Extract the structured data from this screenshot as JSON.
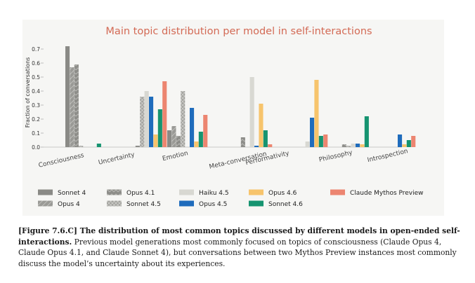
{
  "chart_data": {
    "type": "bar",
    "title": "Main topic distribution per model in self-interactions",
    "ylabel": "Fraction of conversations",
    "xlabel": "",
    "ylim": [
      0,
      0.75
    ],
    "yticks": [
      "0.0",
      "0.1",
      "0.2",
      "0.3",
      "0.4",
      "0.5",
      "0.6",
      "0.7"
    ],
    "grid": false,
    "legend_position": "bottom",
    "categories": [
      "Consciousness",
      "Uncertainty",
      "Emotion",
      "Meta-conversation",
      "Performativity",
      "Philosophy",
      "Introspection"
    ],
    "series": [
      {
        "name": "Sonnet 4",
        "color": "#8a8a86",
        "pattern": "solid",
        "values": [
          0.72,
          0.0,
          0.12,
          0.0,
          0.0,
          0.0,
          0.0
        ]
      },
      {
        "name": "Opus 4",
        "color": "#9a9a96",
        "pattern": "hatch",
        "values": [
          0.57,
          0.0,
          0.15,
          0.0,
          0.0,
          0.0,
          0.0
        ]
      },
      {
        "name": "Opus 4.1",
        "color": "#8d8d89",
        "pattern": "zigzag",
        "values": [
          0.59,
          0.01,
          0.08,
          0.07,
          0.0,
          0.02,
          0.0
        ]
      },
      {
        "name": "Sonnet 4.5",
        "color": "#a1a19d",
        "pattern": "xhatch",
        "values": [
          0.01,
          0.36,
          0.4,
          0.0,
          0.0,
          0.01,
          0.0
        ]
      },
      {
        "name": "Haiku 4.5",
        "color": "#d8d8d2",
        "pattern": "solid",
        "values": [
          0.0,
          0.4,
          0.0,
          0.5,
          0.04,
          0.025,
          0.0
        ]
      },
      {
        "name": "Opus 4.5",
        "color": "#1f6cbc",
        "pattern": "solid",
        "values": [
          0.0,
          0.36,
          0.28,
          0.01,
          0.21,
          0.025,
          0.09
        ]
      },
      {
        "name": "Opus 4.6",
        "color": "#f7c46c",
        "pattern": "solid",
        "values": [
          0.0,
          0.09,
          0.04,
          0.31,
          0.48,
          0.02,
          0.02
        ]
      },
      {
        "name": "Sonnet 4.6",
        "color": "#169470",
        "pattern": "solid",
        "values": [
          0.025,
          0.27,
          0.11,
          0.12,
          0.08,
          0.22,
          0.05
        ]
      },
      {
        "name": "Claude Mythos Preview",
        "color": "#ec8570",
        "pattern": "solid",
        "values": [
          0.0,
          0.47,
          0.23,
          0.02,
          0.09,
          0.0,
          0.08
        ]
      }
    ]
  },
  "caption": {
    "label": "[Figure 7.6.C] The distribution of most common topics discussed by different models in open-ended self-interactions.",
    "text": "Previous model generations most commonly focused on topics of consciousness (Claude Opus 4, Claude Opus 4.1, and Claude Sonnet 4), but conversations between two Mythos Preview instances most commonly discuss the model’s uncertainty about its experiences."
  }
}
